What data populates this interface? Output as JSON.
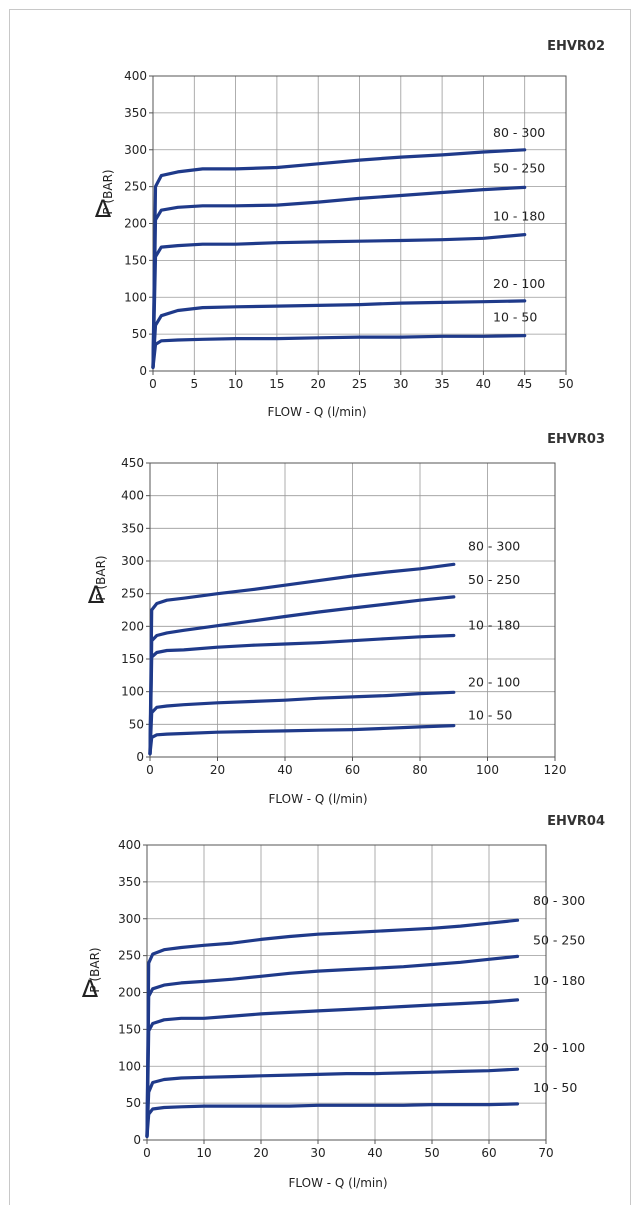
{
  "charts": [
    {
      "code": "EHVR02",
      "ylabel_prefix": "Δ",
      "ylabel": "P (BAR)",
      "xlabel": "FLOW - Q (l/min)"
    },
    {
      "code": "EHVR03",
      "ylabel_prefix": "Δ",
      "ylabel": "P (BAR)",
      "xlabel": "FLOW - Q (l/min)"
    },
    {
      "code": "EHVR04",
      "ylabel_prefix": "Δ",
      "ylabel": "P (BAR)",
      "xlabel": "FLOW - Q (l/min)"
    }
  ],
  "chart_data": [
    {
      "type": "line",
      "title": "EHVR02",
      "xlabel": "FLOW - Q (l/min)",
      "ylabel": "Δ P (BAR)",
      "xlim": [
        0,
        50
      ],
      "ylim": [
        0,
        400
      ],
      "xticks": [
        0,
        5,
        10,
        15,
        20,
        25,
        30,
        35,
        40,
        45,
        50
      ],
      "yticks": [
        0,
        50,
        100,
        150,
        200,
        250,
        300,
        350,
        400
      ],
      "grid": true,
      "line_color": "#1f3a8a",
      "series": [
        {
          "name": "80 - 300",
          "x": [
            0,
            0.3,
            1,
            3,
            6,
            10,
            15,
            20,
            25,
            30,
            35,
            40,
            45
          ],
          "y": [
            5,
            250,
            265,
            270,
            274,
            274,
            276,
            281,
            286,
            290,
            293,
            297,
            300
          ]
        },
        {
          "name": "50 - 250",
          "x": [
            0,
            0.3,
            1,
            3,
            6,
            10,
            15,
            20,
            25,
            30,
            35,
            40,
            45
          ],
          "y": [
            5,
            205,
            218,
            222,
            224,
            224,
            225,
            229,
            234,
            238,
            242,
            246,
            249
          ]
        },
        {
          "name": "10 - 180",
          "x": [
            0,
            0.3,
            1,
            3,
            6,
            10,
            15,
            20,
            25,
            30,
            35,
            40,
            45
          ],
          "y": [
            5,
            155,
            168,
            170,
            172,
            172,
            174,
            175,
            176,
            177,
            178,
            180,
            185
          ]
        },
        {
          "name": "20 - 100",
          "x": [
            0,
            0.3,
            1,
            3,
            6,
            10,
            15,
            20,
            25,
            30,
            35,
            40,
            45
          ],
          "y": [
            5,
            62,
            75,
            82,
            86,
            87,
            88,
            89,
            90,
            92,
            93,
            94,
            95
          ]
        },
        {
          "name": "10 - 50",
          "x": [
            0,
            0.3,
            1,
            3,
            6,
            10,
            15,
            20,
            25,
            30,
            35,
            40,
            45
          ],
          "y": [
            5,
            36,
            41,
            42,
            43,
            44,
            44,
            45,
            46,
            46,
            47,
            47,
            48
          ]
        }
      ]
    },
    {
      "type": "line",
      "title": "EHVR03",
      "xlabel": "FLOW - Q (l/min)",
      "ylabel": "Δ P (BAR)",
      "xlim": [
        0,
        120
      ],
      "ylim": [
        0,
        450
      ],
      "xticks": [
        0,
        20,
        40,
        60,
        80,
        100,
        120
      ],
      "yticks": [
        0,
        50,
        100,
        150,
        200,
        250,
        300,
        350,
        400,
        450
      ],
      "grid": true,
      "line_color": "#1f3a8a",
      "series": [
        {
          "name": "80 - 300",
          "x": [
            0,
            0.5,
            2,
            5,
            10,
            20,
            30,
            40,
            50,
            60,
            70,
            80,
            90
          ],
          "y": [
            5,
            225,
            235,
            240,
            243,
            250,
            256,
            263,
            270,
            277,
            283,
            288,
            295
          ]
        },
        {
          "name": "50 - 250",
          "x": [
            0,
            0.5,
            2,
            5,
            10,
            20,
            30,
            40,
            50,
            60,
            70,
            80,
            90
          ],
          "y": [
            5,
            178,
            186,
            190,
            194,
            201,
            208,
            215,
            222,
            228,
            234,
            240,
            245
          ]
        },
        {
          "name": "10 - 180",
          "x": [
            0,
            0.5,
            2,
            5,
            10,
            20,
            30,
            40,
            50,
            60,
            70,
            80,
            90
          ],
          "y": [
            5,
            153,
            160,
            163,
            164,
            168,
            171,
            173,
            175,
            178,
            181,
            184,
            186
          ]
        },
        {
          "name": "20 - 100",
          "x": [
            0,
            0.5,
            2,
            5,
            10,
            20,
            30,
            40,
            50,
            60,
            70,
            80,
            90
          ],
          "y": [
            5,
            68,
            76,
            78,
            80,
            83,
            85,
            87,
            90,
            92,
            94,
            97,
            99
          ]
        },
        {
          "name": "10 - 50",
          "x": [
            0,
            0.5,
            2,
            5,
            10,
            20,
            30,
            40,
            50,
            60,
            70,
            80,
            90
          ],
          "y": [
            5,
            30,
            34,
            35,
            36,
            38,
            39,
            40,
            41,
            42,
            44,
            46,
            48
          ]
        }
      ]
    },
    {
      "type": "line",
      "title": "EHVR04",
      "xlabel": "FLOW - Q (l/min)",
      "ylabel": "Δ P (BAR)",
      "xlim": [
        0,
        70
      ],
      "ylim": [
        0,
        400
      ],
      "xticks": [
        0,
        10,
        20,
        30,
        40,
        50,
        60,
        70
      ],
      "yticks": [
        0,
        50,
        100,
        150,
        200,
        250,
        300,
        350,
        400
      ],
      "grid": true,
      "line_color": "#1f3a8a",
      "series": [
        {
          "name": "80 - 300",
          "x": [
            0,
            0.3,
            1,
            3,
            6,
            10,
            15,
            20,
            25,
            30,
            35,
            40,
            45,
            50,
            55,
            60,
            65
          ],
          "y": [
            5,
            240,
            252,
            258,
            261,
            264,
            267,
            272,
            276,
            279,
            281,
            283,
            285,
            287,
            290,
            294,
            298
          ]
        },
        {
          "name": "50 - 250",
          "x": [
            0,
            0.3,
            1,
            3,
            6,
            10,
            15,
            20,
            25,
            30,
            35,
            40,
            45,
            50,
            55,
            60,
            65
          ],
          "y": [
            5,
            195,
            205,
            210,
            213,
            215,
            218,
            222,
            226,
            229,
            231,
            233,
            235,
            238,
            241,
            245,
            249
          ]
        },
        {
          "name": "10 - 180",
          "x": [
            0,
            0.3,
            1,
            3,
            6,
            10,
            15,
            20,
            25,
            30,
            35,
            40,
            45,
            50,
            55,
            60,
            65
          ],
          "y": [
            5,
            148,
            158,
            163,
            165,
            165,
            168,
            171,
            173,
            175,
            177,
            179,
            181,
            183,
            185,
            187,
            190
          ]
        },
        {
          "name": "20 - 100",
          "x": [
            0,
            0.3,
            1,
            3,
            6,
            10,
            15,
            20,
            25,
            30,
            35,
            40,
            45,
            50,
            55,
            60,
            65
          ],
          "y": [
            5,
            65,
            78,
            82,
            84,
            85,
            86,
            87,
            88,
            89,
            90,
            90,
            91,
            92,
            93,
            94,
            96
          ]
        },
        {
          "name": "10 - 50",
          "x": [
            0,
            0.3,
            1,
            3,
            6,
            10,
            15,
            20,
            25,
            30,
            35,
            40,
            45,
            50,
            55,
            60,
            65
          ],
          "y": [
            5,
            35,
            42,
            44,
            45,
            46,
            46,
            46,
            46,
            47,
            47,
            47,
            47,
            48,
            48,
            48,
            49
          ]
        }
      ]
    }
  ]
}
